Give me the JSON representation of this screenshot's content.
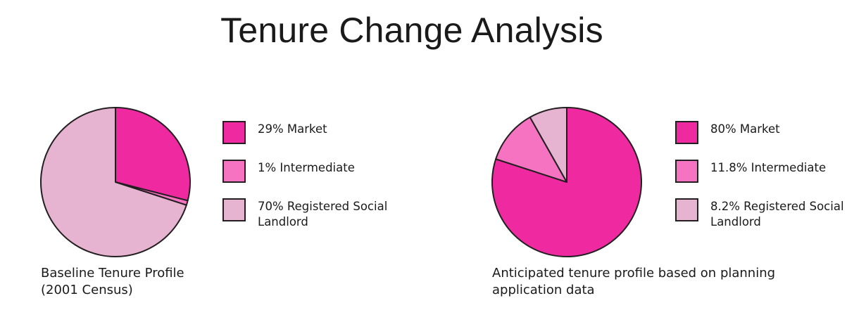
{
  "title": "Tenure Change Analysis",
  "chart_data": [
    {
      "type": "pie",
      "caption": "Baseline Tenure Profile\n(2001 Census)",
      "slices": [
        {
          "label": "29% Market",
          "value": 29,
          "color": "#ef2aa1"
        },
        {
          "label": "1% Intermediate",
          "value": 1,
          "color": "#f573c0"
        },
        {
          "label": "70% Registered Social Landlord",
          "value": 70,
          "color": "#e6b4d1"
        }
      ]
    },
    {
      "type": "pie",
      "caption": "Anticipated tenure profile based on planning\napplication data",
      "slices": [
        {
          "label": "80% Market",
          "value": 80,
          "color": "#ef2aa1"
        },
        {
          "label": "11.8% Intermediate",
          "value": 11.8,
          "color": "#f573c0"
        },
        {
          "label": "8.2% Registered Social Landlord",
          "value": 8.2,
          "color": "#e6b4d1"
        }
      ]
    }
  ]
}
